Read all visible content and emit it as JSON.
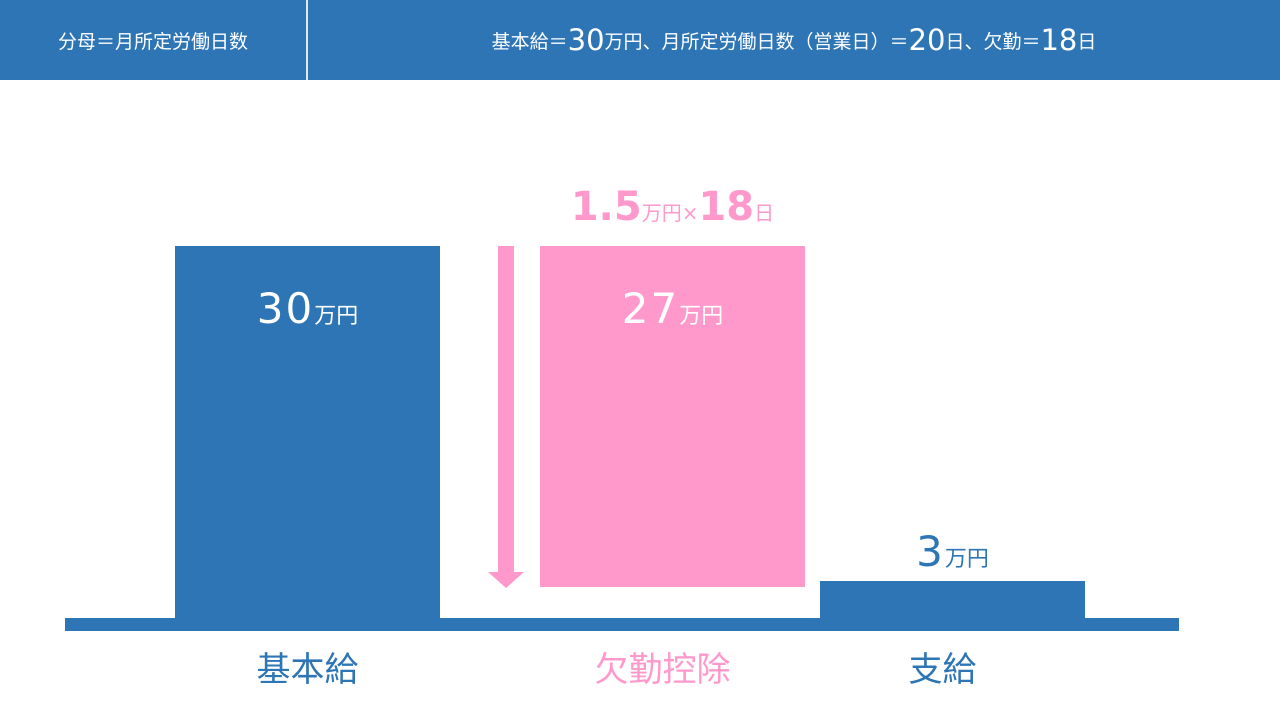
{
  "header": {
    "left_text": "分母＝月所定労働日数",
    "right_parts": [
      {
        "text": "基本給＝",
        "big": false
      },
      {
        "text": "30",
        "big": true
      },
      {
        "text": "万円、月所定労働日数（営業日）＝",
        "big": false
      },
      {
        "text": "20",
        "big": true
      },
      {
        "text": "日、欠勤＝",
        "big": false
      },
      {
        "text": "18",
        "big": true
      },
      {
        "text": "日",
        "big": false
      }
    ]
  },
  "bars": {
    "basic": {
      "label": "基本給",
      "num": "30",
      "unit": "万円",
      "value": 30
    },
    "absence": {
      "label": "欠勤控除",
      "num": "27",
      "unit": "万円",
      "value": 27,
      "formula_num1": "1.5",
      "formula_unit1": "万円×",
      "formula_num2": "18",
      "formula_unit2": "日"
    },
    "pay": {
      "label": "支給",
      "num": "3",
      "unit": "万円",
      "value": 3
    }
  },
  "colors": {
    "blue": "#2e75b6",
    "pink": "#ff99cc",
    "white": "#ffffff"
  }
}
